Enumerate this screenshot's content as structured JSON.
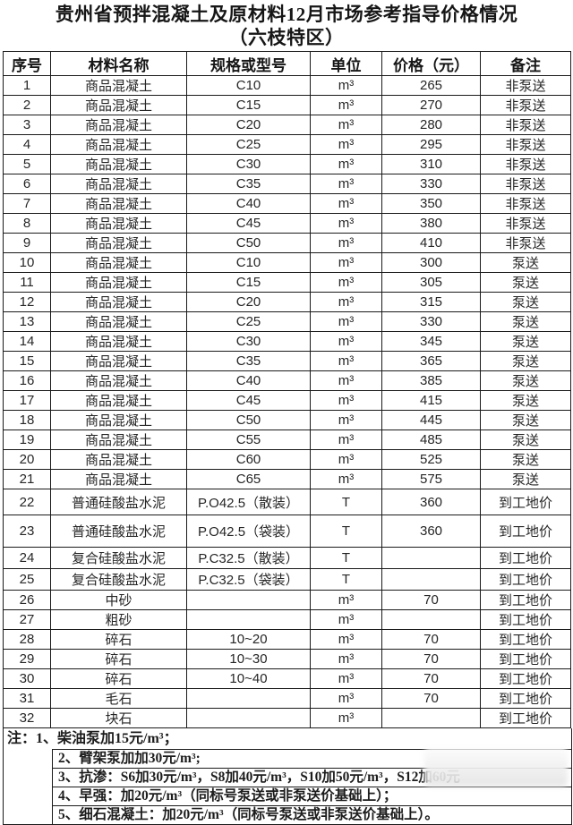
{
  "title": {
    "line1": "贵州省预拌混凝土及原材料12月市场参考指导价格情况",
    "line2": "（六枝特区）"
  },
  "table": {
    "headers": [
      "序号",
      "材料名称",
      "规格或型号",
      "单位",
      "价格（元）",
      "备注"
    ],
    "rows": [
      [
        "1",
        "商品混凝土",
        "C10",
        "m³",
        "265",
        "非泵送"
      ],
      [
        "2",
        "商品混凝土",
        "C15",
        "m³",
        "270",
        "非泵送"
      ],
      [
        "3",
        "商品混凝土",
        "C20",
        "m³",
        "280",
        "非泵送"
      ],
      [
        "4",
        "商品混凝土",
        "C25",
        "m³",
        "295",
        "非泵送"
      ],
      [
        "5",
        "商品混凝土",
        "C30",
        "m³",
        "310",
        "非泵送"
      ],
      [
        "6",
        "商品混凝土",
        "C35",
        "m³",
        "330",
        "非泵送"
      ],
      [
        "7",
        "商品混凝土",
        "C40",
        "m³",
        "350",
        "非泵送"
      ],
      [
        "8",
        "商品混凝土",
        "C45",
        "m³",
        "380",
        "非泵送"
      ],
      [
        "9",
        "商品混凝土",
        "C50",
        "m³",
        "410",
        "非泵送"
      ],
      [
        "10",
        "商品混凝土",
        "C10",
        "m³",
        "300",
        "泵送"
      ],
      [
        "11",
        "商品混凝土",
        "C15",
        "m³",
        "305",
        "泵送"
      ],
      [
        "12",
        "商品混凝土",
        "C20",
        "m³",
        "315",
        "泵送"
      ],
      [
        "13",
        "商品混凝土",
        "C25",
        "m³",
        "330",
        "泵送"
      ],
      [
        "14",
        "商品混凝土",
        "C30",
        "m³",
        "345",
        "泵送"
      ],
      [
        "15",
        "商品混凝土",
        "C35",
        "m³",
        "365",
        "泵送"
      ],
      [
        "16",
        "商品混凝土",
        "C40",
        "m³",
        "385",
        "泵送"
      ],
      [
        "17",
        "商品混凝土",
        "C45",
        "m³",
        "415",
        "泵送"
      ],
      [
        "18",
        "商品混凝土",
        "C50",
        "m³",
        "445",
        "泵送"
      ],
      [
        "19",
        "商品混凝土",
        "C55",
        "m³",
        "485",
        "泵送"
      ],
      [
        "20",
        "商品混凝土",
        "C60",
        "m³",
        "525",
        "泵送"
      ],
      [
        "21",
        "商品混凝土",
        "C65",
        "m³",
        "575",
        "泵送"
      ],
      [
        "22",
        "普通硅酸盐水泥",
        "P.O42.5（散装）",
        "T",
        "360",
        "到工地价"
      ],
      [
        "23",
        "普通硅酸盐水泥",
        "P.O42.5（袋装）",
        "T",
        "360",
        "到工地价"
      ],
      [
        "24",
        "复合硅酸盐水泥",
        "P.C32.5（散装）",
        "T",
        "",
        "到工地价"
      ],
      [
        "25",
        "复合硅酸盐水泥",
        "P.C32.5（袋装）",
        "T",
        "",
        "到工地价"
      ],
      [
        "26",
        "中砂",
        "",
        "m³",
        "70",
        "到工地价"
      ],
      [
        "27",
        "粗砂",
        "",
        "m³",
        "",
        "到工地价"
      ],
      [
        "28",
        "碎石",
        "10~20",
        "m³",
        "70",
        "到工地价"
      ],
      [
        "29",
        "碎石",
        "10~30",
        "m³",
        "70",
        "到工地价"
      ],
      [
        "30",
        "碎石",
        "10~40",
        "m³",
        "70",
        "到工地价"
      ],
      [
        "31",
        "毛石",
        "",
        "m³",
        "70",
        "到工地价"
      ],
      [
        "32",
        "块石",
        "",
        "m³",
        "",
        "到工地价"
      ]
    ]
  },
  "notes": {
    "first": "注：1、柴油泵加15元/m³；",
    "rest": [
      "2、臂架泵加加30元/m³;",
      "3、抗渗：S6加30元/m³，S8加40元/m³，S10加50元/m³，S12加60元",
      "4、早强：加20元/m³（同标号泵送或非泵送价基础上）；",
      "5、细石混凝土：加20元/m³（同标号泵送或非泵送价基础上）。"
    ]
  },
  "colors": {
    "border": "#1a1a1a",
    "text": "#262626",
    "background": "#ffffff"
  }
}
